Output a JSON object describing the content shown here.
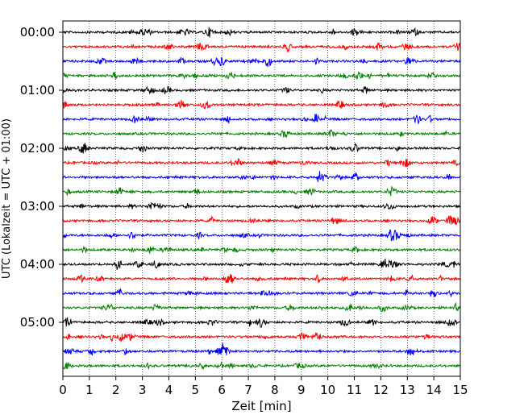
{
  "chart_data": {
    "type": "line",
    "title": "",
    "xlabel": "Zeit  [min]",
    "ylabel": "UTC (Lokalzeit = UTC + 01:00)",
    "xlim": [
      0,
      15
    ],
    "x_ticks": [
      "0",
      "1",
      "2",
      "3",
      "4",
      "5",
      "6",
      "7",
      "8",
      "9",
      "10",
      "11",
      "12",
      "13",
      "14",
      "15"
    ],
    "grid": "vertical dotted at each minute",
    "y_tick_labels": [
      "00:00",
      "01:00",
      "02:00",
      "03:00",
      "04:00",
      "05:00"
    ],
    "trace_interval_min": 15,
    "trace_count": 24,
    "trace_colors": [
      "#000000",
      "#ff0000",
      "#0000ff",
      "#008000"
    ],
    "description_values": "Helicorder seismogram: 24 traces of 15 minutes each covering 00:00–06:00 UTC; amplitudes are noise-level with sporadic small spikes."
  }
}
